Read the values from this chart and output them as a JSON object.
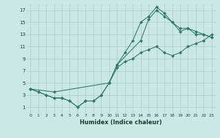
{
  "background_color": "#cce8e4",
  "grid_color": "#aacfca",
  "line_color": "#2d7a6e",
  "xlabel": "Humidex (Indice chaleur)",
  "xlim": [
    -0.5,
    23.5
  ],
  "ylim": [
    0,
    18
  ],
  "yticks": [
    1,
    3,
    5,
    7,
    9,
    11,
    13,
    15,
    17
  ],
  "xticks": [
    0,
    1,
    2,
    3,
    4,
    5,
    6,
    7,
    8,
    9,
    10,
    11,
    12,
    13,
    14,
    15,
    16,
    17,
    18,
    19,
    20,
    21,
    22,
    23
  ],
  "line1_x": [
    0,
    1,
    2,
    3,
    4,
    5,
    6,
    7,
    8,
    9,
    10,
    11,
    12,
    13,
    14,
    15,
    16,
    17,
    18,
    19,
    20,
    21,
    22,
    23
  ],
  "line1_y": [
    4,
    3.5,
    3,
    2.5,
    2.5,
    2,
    1,
    2,
    2,
    3,
    5,
    7.5,
    8.5,
    9,
    10,
    10.5,
    11,
    10,
    9.5,
    10,
    11,
    11.5,
    12,
    13
  ],
  "line2_x": [
    0,
    1,
    2,
    3,
    4,
    5,
    6,
    7,
    8,
    9,
    10,
    11,
    12,
    13,
    14,
    15,
    16,
    17,
    18,
    19,
    20,
    21,
    22,
    23
  ],
  "line2_y": [
    4,
    3.5,
    3,
    2.5,
    2.5,
    2,
    1,
    2,
    2,
    3,
    5,
    8,
    10,
    12,
    15,
    16,
    17.5,
    16.5,
    15,
    14,
    14,
    13,
    13,
    12.5
  ],
  "line3_x": [
    0,
    3,
    10,
    11,
    14,
    15,
    16,
    17,
    18,
    19,
    20,
    21,
    22,
    23
  ],
  "line3_y": [
    4,
    3.5,
    5,
    8,
    12,
    15.5,
    17,
    16,
    15,
    13.5,
    14,
    13.5,
    13,
    12.5
  ]
}
